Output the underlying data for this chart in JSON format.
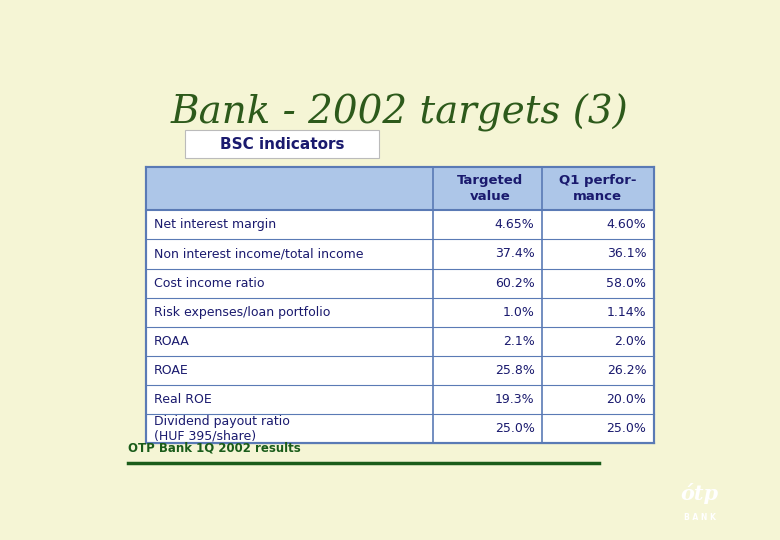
{
  "title": "Bank - 2002 targets (3)",
  "subtitle": "BSC indicators",
  "background_color": "#f5f5d5",
  "title_color": "#2d5a1b",
  "subtitle_color": "#1a1a6e",
  "table_header_bg": "#adc6e8",
  "table_border_color": "#5a7ab5",
  "footer_text": "OTP Bank 1Q 2002 results",
  "footer_color": "#1a5c1a",
  "footer_line_color": "#1a5c1a",
  "logo_bg": "#1a4a35",
  "col_headers": [
    "Targeted\nvalue",
    "Q1 perfor-\nmance"
  ],
  "rows": [
    [
      "Net interest margin",
      "4.65%",
      "4.60%"
    ],
    [
      "Non interest income/total income",
      "37.4%",
      "36.1%"
    ],
    [
      "Cost income ratio",
      "60.2%",
      "58.0%"
    ],
    [
      "Risk expenses/loan portfolio",
      "1.0%",
      "1.14%"
    ],
    [
      "ROAA",
      "2.1%",
      "2.0%"
    ],
    [
      "ROAE",
      "25.8%",
      "26.2%"
    ],
    [
      "Real ROE",
      "19.3%",
      "20.0%"
    ],
    [
      "Dividend payout ratio\n(HUF 395/share)",
      "25.0%",
      "25.0%"
    ]
  ]
}
